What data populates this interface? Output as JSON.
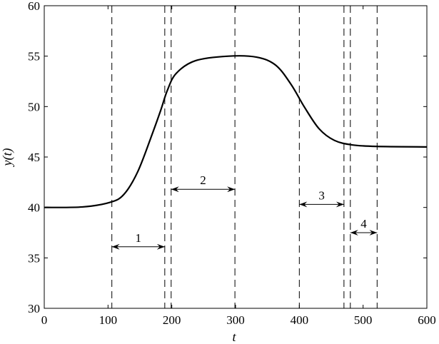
{
  "chart_data": {
    "type": "line",
    "xlabel": "t",
    "ylabel": "y(t)",
    "xlim": [
      0,
      600
    ],
    "ylim": [
      30,
      60
    ],
    "xticks": [
      0,
      100,
      200,
      300,
      400,
      500,
      600
    ],
    "yticks": [
      30,
      35,
      40,
      45,
      50,
      55,
      60
    ],
    "grid": false,
    "series": [
      {
        "x": [
          0,
          60,
          103,
          125,
          147,
          170,
          183,
          193,
          207,
          237,
          289,
          333,
          363,
          387,
          408,
          431,
          455,
          483,
          520,
          600
        ],
        "y": [
          40,
          40.05,
          40.5,
          41.3,
          43.6,
          47.4,
          49.7,
          51.6,
          53.3,
          54.55,
          55.0,
          54.9,
          54.1,
          52.2,
          49.95,
          47.8,
          46.65,
          46.2,
          46.05,
          46
        ]
      }
    ],
    "vertical_dashed_lines": [
      106,
      189,
      199,
      299,
      400,
      470,
      480,
      522
    ],
    "intervals": [
      {
        "label": "1",
        "from": 106,
        "to": 189,
        "y": 36.1
      },
      {
        "label": "2",
        "from": 199,
        "to": 299,
        "y": 41.8
      },
      {
        "label": "3",
        "from": 400,
        "to": 470,
        "y": 40.3
      },
      {
        "label": "4",
        "from": 480,
        "to": 522,
        "y": 37.5
      }
    ]
  }
}
